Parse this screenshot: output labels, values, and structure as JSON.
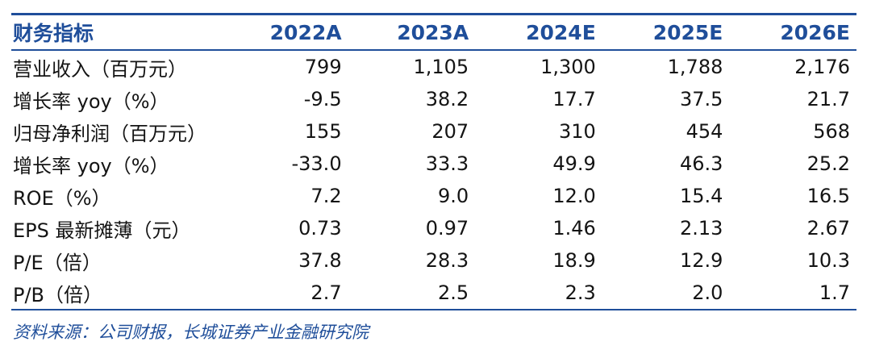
{
  "table": {
    "header": [
      "财务指标",
      "2022A",
      "2023A",
      "2024E",
      "2025E",
      "2026E"
    ],
    "rows": [
      {
        "label": "营业收入（百万元）",
        "values": [
          "799",
          "1,105",
          "1,300",
          "1,788",
          "2,176"
        ]
      },
      {
        "label": "增长率 yoy（%）",
        "values": [
          "-9.5",
          "38.2",
          "17.7",
          "37.5",
          "21.7"
        ]
      },
      {
        "label": "归母净利润（百万元）",
        "values": [
          "155",
          "207",
          "310",
          "454",
          "568"
        ]
      },
      {
        "label": "增长率 yoy（%）",
        "values": [
          "-33.0",
          "33.3",
          "49.9",
          "46.3",
          "25.2"
        ]
      },
      {
        "label": "ROE（%）",
        "values": [
          "7.2",
          "9.0",
          "12.0",
          "15.4",
          "16.5"
        ]
      },
      {
        "label": "EPS 最新摊薄（元）",
        "values": [
          "0.73",
          "0.97",
          "1.46",
          "2.13",
          "2.67"
        ]
      },
      {
        "label": "P/E（倍）",
        "values": [
          "37.8",
          "28.3",
          "18.9",
          "12.9",
          "10.3"
        ]
      },
      {
        "label": "P/B（倍）",
        "values": [
          "2.7",
          "2.5",
          "2.3",
          "2.0",
          "1.7"
        ]
      }
    ]
  },
  "source_note": "资料来源：公司财报，长城证券产业金融研究院",
  "colors": {
    "accent": "#1f4e9a",
    "text": "#141414"
  }
}
